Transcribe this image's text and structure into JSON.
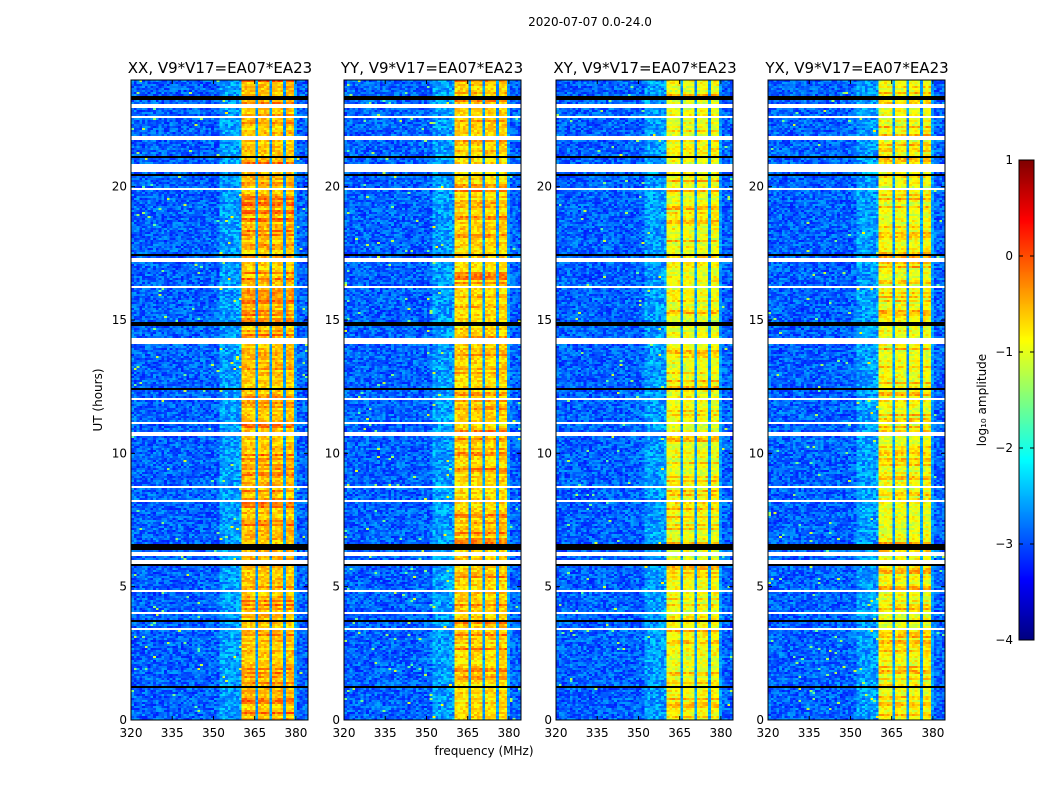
{
  "chart_data": {
    "type": "heatmap",
    "title": "2020-07-07 0.0-24.0",
    "xlabel": "frequency (MHz)",
    "ylabel": "UT (hours)",
    "xlim": [
      320,
      384.4
    ],
    "ylim": [
      0,
      24
    ],
    "xticks": [
      320,
      335,
      350,
      365,
      380
    ],
    "yticks": [
      0,
      5,
      10,
      15,
      20
    ],
    "panels": [
      {
        "title": "XX, V9*V17=EA07*EA23",
        "band_level": -0.6
      },
      {
        "title": "YY, V9*V17=EA07*EA23",
        "band_level": -0.7
      },
      {
        "title": "XY, V9*V17=EA07*EA23",
        "band_level": -0.95
      },
      {
        "title": "YX, V9*V17=EA07*EA23",
        "band_level": -0.95
      }
    ],
    "background_level": -2.9,
    "rfi_band_mhz": [
      360.7,
      380.4
    ],
    "band_gaps_mhz": [
      366,
      371,
      375.6,
      380.2
    ],
    "flagged_hours_white": [
      [
        23.0,
        23.05
      ],
      [
        22.6,
        22.65
      ],
      [
        21.8,
        21.85
      ],
      [
        20.6,
        20.85
      ],
      [
        19.9,
        19.95
      ],
      [
        17.2,
        17.3
      ],
      [
        16.2,
        16.25
      ],
      [
        14.1,
        14.3
      ],
      [
        12.0,
        12.05
      ],
      [
        11.1,
        11.15
      ],
      [
        10.7,
        10.75
      ],
      [
        8.7,
        8.75
      ],
      [
        8.2,
        8.25
      ],
      [
        6.2,
        6.25
      ],
      [
        5.9,
        5.95
      ],
      [
        4.8,
        4.85
      ],
      [
        4.0,
        4.05
      ],
      [
        3.4,
        3.45
      ]
    ],
    "flagged_hours_black": [
      [
        23.3,
        23.35
      ],
      [
        21.1,
        21.15
      ],
      [
        20.4,
        20.45
      ],
      [
        17.4,
        17.45
      ],
      [
        14.8,
        14.9
      ],
      [
        12.4,
        12.45
      ],
      [
        6.4,
        6.6
      ],
      [
        5.8,
        5.85
      ],
      [
        3.7,
        3.75
      ],
      [
        1.2,
        1.25
      ]
    ],
    "colorbar": {
      "label": "log₁₀ amplitude",
      "range": [
        -4,
        1
      ],
      "ticks": [
        1,
        0,
        -1,
        -2,
        -3,
        -4
      ],
      "tick_labels": [
        "1",
        "0",
        "−1",
        "−2",
        "−3",
        "−4"
      ],
      "colormap": "jet"
    }
  }
}
